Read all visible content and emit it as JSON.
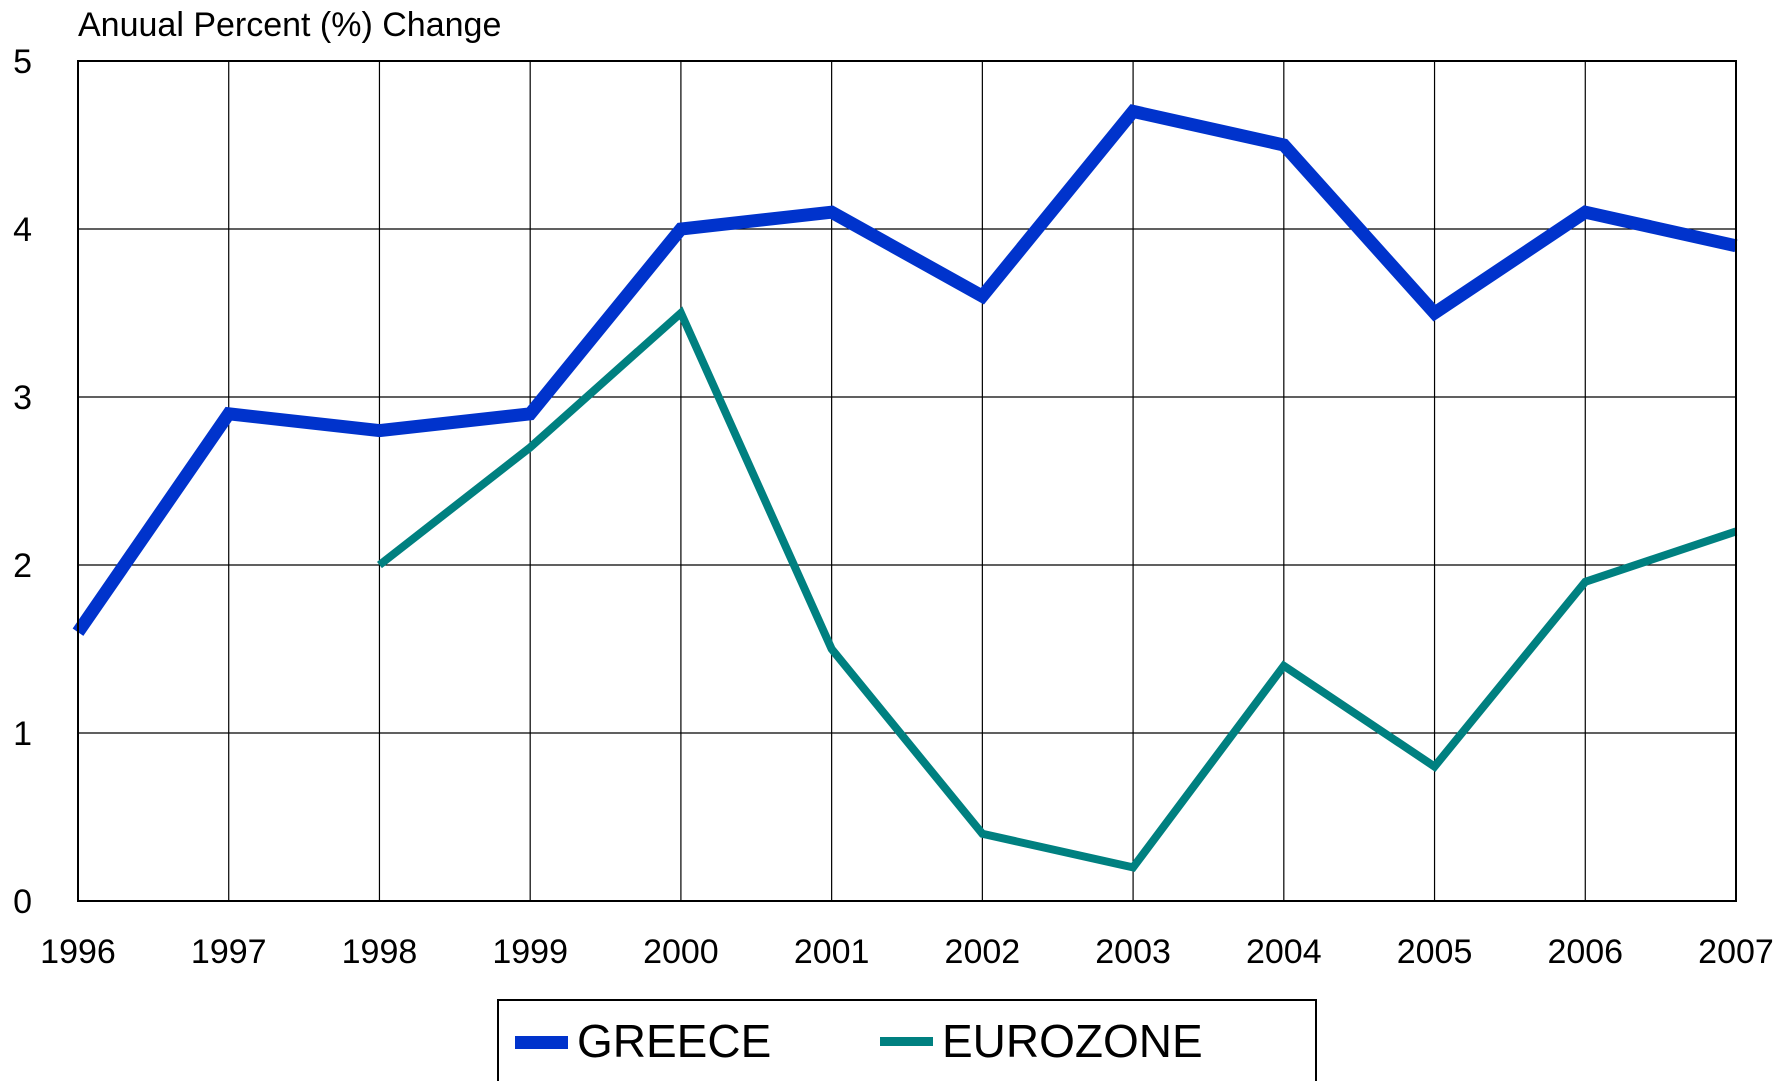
{
  "chart_data": {
    "type": "line",
    "title": "",
    "ylabel": "Anuual Percent (%) Change",
    "xlabel": "",
    "categories": [
      "1996",
      "1997",
      "1998",
      "1999",
      "2000",
      "2001",
      "2002",
      "2003",
      "2004",
      "2005",
      "2006",
      "2007"
    ],
    "ylim": [
      0,
      5
    ],
    "yticks": [
      "0",
      "1",
      "2",
      "3",
      "4",
      "5"
    ],
    "grid": true,
    "legend_position": "bottom-center",
    "series": [
      {
        "name": "GREECE",
        "color": "#0033CC",
        "values": [
          1.6,
          2.9,
          2.8,
          2.9,
          4.0,
          4.1,
          3.6,
          4.7,
          4.5,
          3.5,
          4.1,
          3.9
        ]
      },
      {
        "name": "EUROZONE",
        "color": "#008080",
        "values": [
          null,
          null,
          2.0,
          2.7,
          3.5,
          1.5,
          0.4,
          0.2,
          1.4,
          0.8,
          1.9,
          2.2
        ]
      }
    ]
  }
}
